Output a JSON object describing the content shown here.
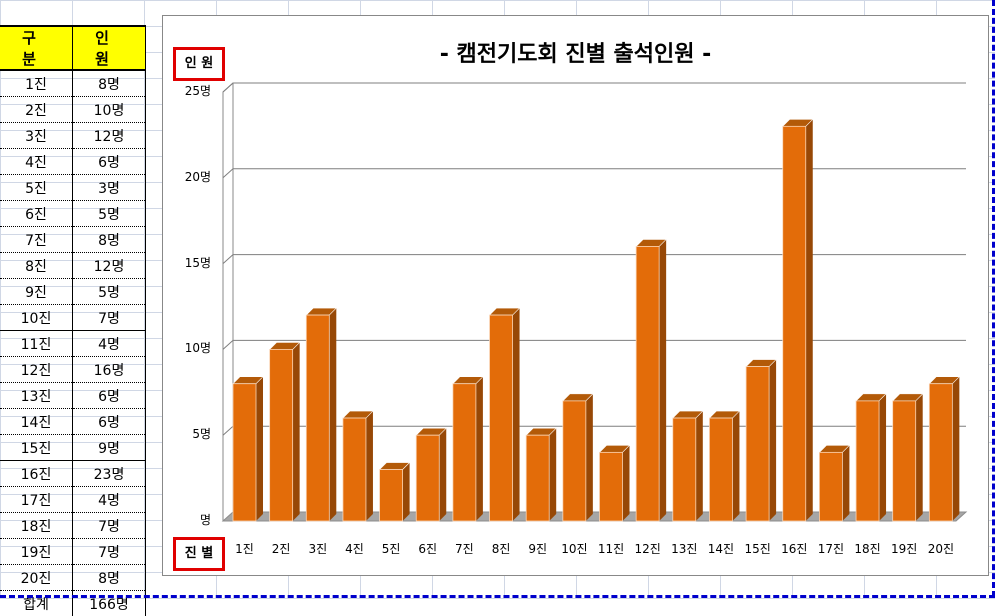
{
  "sheet": {
    "headers": [
      "구 분",
      "인 원"
    ],
    "rows": [
      [
        "1진",
        "8명"
      ],
      [
        "2진",
        "10명"
      ],
      [
        "3진",
        "12명"
      ],
      [
        "4진",
        "6명"
      ],
      [
        "5진",
        "3명"
      ],
      [
        "6진",
        "5명"
      ],
      [
        "7진",
        "8명"
      ],
      [
        "8진",
        "12명"
      ],
      [
        "9진",
        "5명"
      ],
      [
        "10진",
        "7명"
      ],
      [
        "11진",
        "4명"
      ],
      [
        "12진",
        "16명"
      ],
      [
        "13진",
        "6명"
      ],
      [
        "14진",
        "6명"
      ],
      [
        "15진",
        "9명"
      ],
      [
        "16진",
        "23명"
      ],
      [
        "17진",
        "4명"
      ],
      [
        "18진",
        "7명"
      ],
      [
        "19진",
        "7명"
      ],
      [
        "20진",
        "8명"
      ]
    ],
    "total": [
      "합계",
      "166명"
    ]
  },
  "chart": {
    "title": "- 캠전기도회 진별 출석인원 -",
    "ylabel": "인 원",
    "xlabel": "진 별"
  },
  "chart_data": {
    "type": "bar",
    "title": "- 캠전기도회 진별 출석인원 -",
    "xlabel": "진별",
    "ylabel": "인원",
    "categories": [
      "1진",
      "2진",
      "3진",
      "4진",
      "5진",
      "6진",
      "7진",
      "8진",
      "9진",
      "10진",
      "11진",
      "12진",
      "13진",
      "14진",
      "15진",
      "16진",
      "17진",
      "18진",
      "19진",
      "20진"
    ],
    "values": [
      8,
      10,
      12,
      6,
      3,
      5,
      8,
      12,
      5,
      7,
      4,
      16,
      6,
      6,
      9,
      23,
      4,
      7,
      7,
      8
    ],
    "yticks": [
      "명",
      "5명",
      "10명",
      "15명",
      "20명",
      "25명"
    ],
    "ylim": [
      0,
      25
    ],
    "grid": true,
    "style": "3d-column",
    "bar_color": "#e36c09",
    "bar_side_color": "#974806",
    "total": 166
  }
}
